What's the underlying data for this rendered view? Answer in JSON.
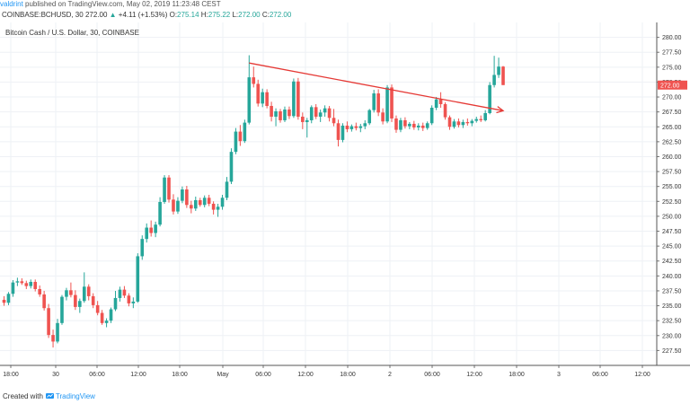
{
  "header": {
    "author": "valdrint",
    "published_text": "published on TradingView.com, May 02, 2019 11:23:48 CEST"
  },
  "symbol_line": {
    "symbol": "COINBASE:BCHUSD, 30",
    "last": "272.00",
    "change_arrow": "▲",
    "change": "+4.11 (+1.53%)",
    "open_label": "O:",
    "open": "275.14",
    "high_label": "H:",
    "high": "275.22",
    "low_label": "L:",
    "low": "272.00",
    "close_label": "C:",
    "close": "272.00"
  },
  "footer": {
    "created_with": "Created with",
    "brand": "TradingView"
  },
  "colors": {
    "up": "#26a69a",
    "down": "#ef5350",
    "trendline": "#e53935",
    "grid": "#eef1f5",
    "brand": "#2196f3"
  },
  "chart_data": {
    "type": "candlestick",
    "title": "Bitcoin Cash / U.S. Dollar, 30, COINBASE",
    "ylim": [
      225.0,
      282.5
    ],
    "y_ticks": [
      "280.00",
      "277.50",
      "275.00",
      "272.50",
      "270.00",
      "267.50",
      "265.00",
      "262.50",
      "260.00",
      "257.50",
      "255.00",
      "252.50",
      "250.00",
      "247.50",
      "245.00",
      "242.50",
      "240.00",
      "237.50",
      "235.00",
      "232.50",
      "230.00",
      "227.50"
    ],
    "x_ticks": [
      "18:00",
      "30",
      "06:00",
      "12:00",
      "18:00",
      "May",
      "06:00",
      "12:00",
      "18:00",
      "2",
      "06:00",
      "12:00",
      "18:00",
      "3",
      "06:00",
      "12:00"
    ],
    "price_label": "272.00",
    "candles": [
      [
        236.0,
        236.6,
        235.0,
        235.5
      ],
      [
        235.5,
        237.3,
        235.1,
        237.0
      ],
      [
        237.0,
        239.3,
        236.5,
        238.9
      ],
      [
        238.9,
        239.7,
        238.3,
        239.1
      ],
      [
        239.1,
        239.6,
        238.5,
        238.8
      ],
      [
        238.8,
        239.2,
        237.8,
        238.3
      ],
      [
        238.3,
        239.4,
        237.9,
        239.0
      ],
      [
        239.0,
        239.4,
        237.4,
        237.8
      ],
      [
        237.8,
        238.4,
        236.5,
        236.9
      ],
      [
        236.9,
        237.5,
        234.2,
        234.6
      ],
      [
        234.6,
        235.3,
        229.6,
        230.1
      ],
      [
        230.1,
        231.0,
        228.0,
        229.0
      ],
      [
        229.0,
        232.8,
        228.7,
        232.1
      ],
      [
        232.1,
        236.8,
        231.8,
        236.5
      ],
      [
        236.5,
        238.0,
        235.9,
        237.6
      ],
      [
        237.6,
        238.9,
        236.4,
        236.8
      ],
      [
        236.8,
        237.6,
        234.3,
        234.8
      ],
      [
        234.8,
        236.2,
        233.8,
        235.8
      ],
      [
        235.8,
        240.6,
        235.5,
        238.2
      ],
      [
        238.2,
        238.6,
        235.9,
        236.6
      ],
      [
        236.6,
        237.1,
        234.6,
        235.1
      ],
      [
        235.1,
        235.8,
        233.4,
        233.8
      ],
      [
        233.8,
        234.3,
        231.8,
        232.1
      ],
      [
        232.1,
        232.9,
        231.4,
        232.5
      ],
      [
        232.5,
        234.7,
        232.1,
        234.4
      ],
      [
        234.4,
        237.5,
        234.1,
        236.3
      ],
      [
        236.3,
        238.2,
        235.7,
        237.7
      ],
      [
        237.7,
        238.3,
        236.3,
        236.7
      ],
      [
        236.7,
        237.1,
        234.9,
        235.4
      ],
      [
        235.4,
        236.4,
        234.6,
        235.7
      ],
      [
        235.7,
        243.8,
        235.5,
        243.3
      ],
      [
        243.3,
        246.8,
        242.7,
        246.2
      ],
      [
        246.2,
        248.8,
        245.6,
        248.1
      ],
      [
        248.1,
        249.3,
        246.6,
        247.2
      ],
      [
        247.2,
        249.1,
        246.5,
        248.6
      ],
      [
        248.6,
        253.2,
        248.3,
        252.4
      ],
      [
        252.4,
        256.9,
        252.1,
        256.5
      ],
      [
        256.5,
        256.9,
        252.3,
        252.8
      ],
      [
        252.8,
        253.7,
        250.3,
        250.8
      ],
      [
        250.8,
        253.2,
        250.4,
        252.6
      ],
      [
        252.6,
        255.0,
        252.2,
        254.5
      ],
      [
        254.5,
        255.1,
        251.4,
        251.9
      ],
      [
        251.9,
        252.6,
        250.5,
        251.3
      ],
      [
        251.3,
        253.3,
        250.9,
        252.7
      ],
      [
        252.7,
        253.1,
        251.6,
        251.9
      ],
      [
        251.9,
        253.5,
        251.5,
        253.1
      ],
      [
        253.1,
        253.6,
        251.7,
        252.1
      ],
      [
        252.1,
        252.5,
        250.3,
        251.1
      ],
      [
        251.1,
        252.1,
        249.9,
        251.6
      ],
      [
        251.6,
        253.6,
        251.1,
        253.1
      ],
      [
        253.1,
        256.6,
        252.7,
        255.8
      ],
      [
        255.8,
        261.4,
        255.4,
        260.8
      ],
      [
        260.8,
        264.8,
        260.4,
        264.2
      ],
      [
        264.2,
        265.3,
        261.8,
        262.6
      ],
      [
        262.6,
        266.2,
        262.3,
        265.7
      ],
      [
        265.7,
        277.0,
        265.4,
        273.3
      ],
      [
        273.3,
        275.1,
        271.6,
        272.2
      ],
      [
        272.2,
        272.9,
        268.4,
        268.9
      ],
      [
        268.9,
        271.4,
        268.3,
        270.8
      ],
      [
        270.8,
        271.3,
        268.1,
        268.5
      ],
      [
        268.5,
        269.2,
        265.9,
        266.7
      ],
      [
        266.7,
        268.1,
        265.1,
        267.6
      ],
      [
        267.6,
        268.0,
        265.7,
        266.1
      ],
      [
        266.1,
        268.4,
        265.8,
        267.9
      ],
      [
        267.9,
        268.4,
        266.3,
        266.8
      ],
      [
        266.8,
        273.1,
        266.5,
        272.6
      ],
      [
        272.6,
        273.2,
        266.2,
        266.7
      ],
      [
        266.7,
        267.4,
        264.6,
        265.8
      ],
      [
        265.8,
        266.5,
        263.2,
        266.1
      ],
      [
        266.1,
        268.6,
        265.6,
        268.3
      ],
      [
        268.3,
        268.8,
        266.3,
        266.7
      ],
      [
        266.7,
        267.9,
        265.8,
        267.4
      ],
      [
        267.4,
        268.6,
        266.7,
        268.1
      ],
      [
        268.1,
        268.5,
        265.9,
        266.5
      ],
      [
        266.5,
        268.0,
        265.1,
        265.6
      ],
      [
        265.6,
        266.2,
        261.7,
        262.8
      ],
      [
        262.8,
        265.6,
        262.4,
        265.2
      ],
      [
        265.2,
        265.9,
        264.1,
        264.6
      ],
      [
        264.6,
        265.4,
        264.2,
        265.1
      ],
      [
        265.1,
        265.7,
        264.4,
        264.8
      ],
      [
        264.8,
        265.5,
        264.1,
        265.1
      ],
      [
        265.1,
        266.1,
        264.6,
        265.6
      ],
      [
        265.6,
        268.0,
        265.3,
        267.8
      ],
      [
        267.8,
        271.2,
        267.4,
        270.6
      ],
      [
        270.6,
        271.3,
        266.8,
        267.4
      ],
      [
        267.4,
        268.1,
        265.4,
        265.9
      ],
      [
        265.9,
        272.0,
        265.6,
        271.6
      ],
      [
        271.6,
        272.1,
        265.8,
        266.4
      ],
      [
        266.4,
        266.9,
        264.0,
        264.5
      ],
      [
        264.5,
        266.5,
        264.1,
        266.1
      ],
      [
        266.1,
        266.6,
        264.7,
        265.1
      ],
      [
        265.1,
        265.8,
        264.6,
        265.5
      ],
      [
        265.5,
        266.0,
        264.5,
        264.9
      ],
      [
        264.9,
        265.6,
        264.4,
        265.2
      ],
      [
        265.2,
        265.7,
        264.3,
        264.8
      ],
      [
        264.8,
        265.9,
        264.5,
        265.6
      ],
      [
        265.6,
        268.6,
        265.3,
        268.2
      ],
      [
        268.2,
        270.0,
        267.8,
        269.6
      ],
      [
        269.6,
        270.8,
        268.2,
        268.8
      ],
      [
        268.8,
        269.1,
        266.2,
        266.6
      ],
      [
        266.6,
        266.9,
        264.5,
        265.0
      ],
      [
        265.0,
        266.3,
        264.7,
        265.9
      ],
      [
        265.9,
        266.4,
        264.9,
        265.3
      ],
      [
        265.3,
        266.2,
        264.8,
        265.8
      ],
      [
        265.8,
        266.4,
        265.2,
        265.6
      ],
      [
        265.6,
        266.3,
        265.1,
        266.0
      ],
      [
        266.0,
        266.7,
        265.7,
        266.3
      ],
      [
        266.3,
        266.9,
        265.8,
        266.1
      ],
      [
        266.1,
        267.8,
        265.9,
        267.3
      ],
      [
        267.3,
        272.5,
        267.1,
        272.0
      ],
      [
        272.0,
        276.9,
        271.6,
        273.7
      ],
      [
        273.7,
        276.6,
        273.2,
        275.1
      ],
      [
        275.1,
        275.2,
        272.0,
        272.0
      ]
    ],
    "trendline": {
      "x_start_index": 55,
      "x_end_index": 112,
      "y_start": 275.7,
      "y_end": 267.7,
      "arrowhead": true
    }
  }
}
